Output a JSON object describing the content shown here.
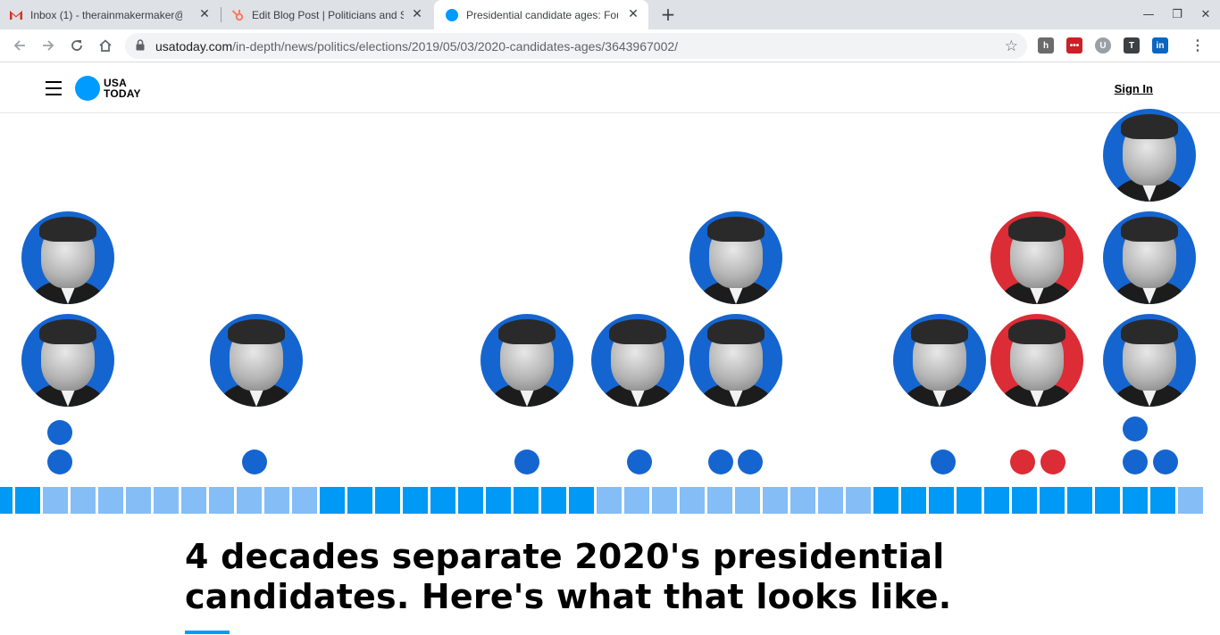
{
  "browser": {
    "tabs": [
      {
        "title": "Inbox (1) - therainmakermaker@",
        "icon": "gmail-icon",
        "active": false
      },
      {
        "title": "Edit Blog Post | Politicians and S",
        "icon": "hubspot-icon",
        "active": false
      },
      {
        "title": "Presidential candidate ages: Fou",
        "icon": "usatoday-icon",
        "active": true
      }
    ],
    "url_domain": "usatoday.com",
    "url_path": "/in-depth/news/politics/elections/2019/05/03/2020-candidates-ages/3643967002/",
    "extensions": [
      "hubspot-icon",
      "lastpass-icon",
      "ublock-icon",
      "tools-icon",
      "linkedin-icon"
    ]
  },
  "site": {
    "logo_line1": "USA",
    "logo_line2": "TODAY",
    "sign_in": "Sign In"
  },
  "article": {
    "headline_line1": "4 decades separate 2020's presidential",
    "headline_line2": "candidates. Here's what that looks like."
  },
  "colors": {
    "dem_blue": "#1565d0",
    "gop_red": "#dc2c35",
    "bar_dark": "#0099f5",
    "bar_light": "#85bdf7",
    "brand": "#009bff"
  },
  "graphic": {
    "columns": [
      {
        "candidates": [
          {
            "party": "dem",
            "hair": "dark"
          },
          {
            "party": "dem",
            "hair": "dark"
          }
        ],
        "dots": [
          "dem",
          "dem"
        ]
      },
      {
        "candidates": [
          {
            "party": "dem",
            "hair": "dark"
          }
        ],
        "dots": [
          "dem"
        ]
      },
      {
        "candidates": [
          {
            "party": "dem",
            "hair": "dark"
          }
        ],
        "dots": [
          "dem"
        ]
      },
      {
        "candidates": [
          {
            "party": "dem",
            "hair": "dark"
          }
        ],
        "dots": [
          "dem"
        ]
      },
      {
        "candidates": [
          {
            "party": "dem",
            "hair": "dark"
          },
          {
            "party": "dem",
            "hair": "gray"
          }
        ],
        "dots": [
          "dem",
          "dem"
        ]
      },
      {
        "candidates": [
          {
            "party": "dem",
            "hair": "gray"
          }
        ],
        "dots": [
          "dem"
        ]
      },
      {
        "candidates": [
          {
            "party": "gop",
            "hair": "light"
          },
          {
            "party": "gop",
            "hair": "light"
          }
        ],
        "dots": [
          "gop",
          "gop"
        ]
      },
      {
        "candidates": [
          {
            "party": "dem",
            "hair": "light"
          },
          {
            "party": "dem",
            "hair": "light"
          },
          {
            "party": "dem",
            "hair": "light"
          }
        ],
        "dots": [
          "dem",
          "dem",
          "dem"
        ]
      }
    ],
    "timeline_pattern": [
      "dark",
      "dark",
      "light",
      "light",
      "light",
      "light",
      "light",
      "light",
      "light",
      "light",
      "light",
      "light",
      "dark",
      "dark",
      "dark",
      "dark",
      "dark",
      "dark",
      "dark",
      "dark",
      "dark",
      "dark",
      "light",
      "light",
      "light",
      "light",
      "light",
      "light",
      "light",
      "light",
      "light",
      "light",
      "dark",
      "dark",
      "dark",
      "dark",
      "dark",
      "dark",
      "dark",
      "dark",
      "dark",
      "dark",
      "dark",
      "light"
    ]
  }
}
